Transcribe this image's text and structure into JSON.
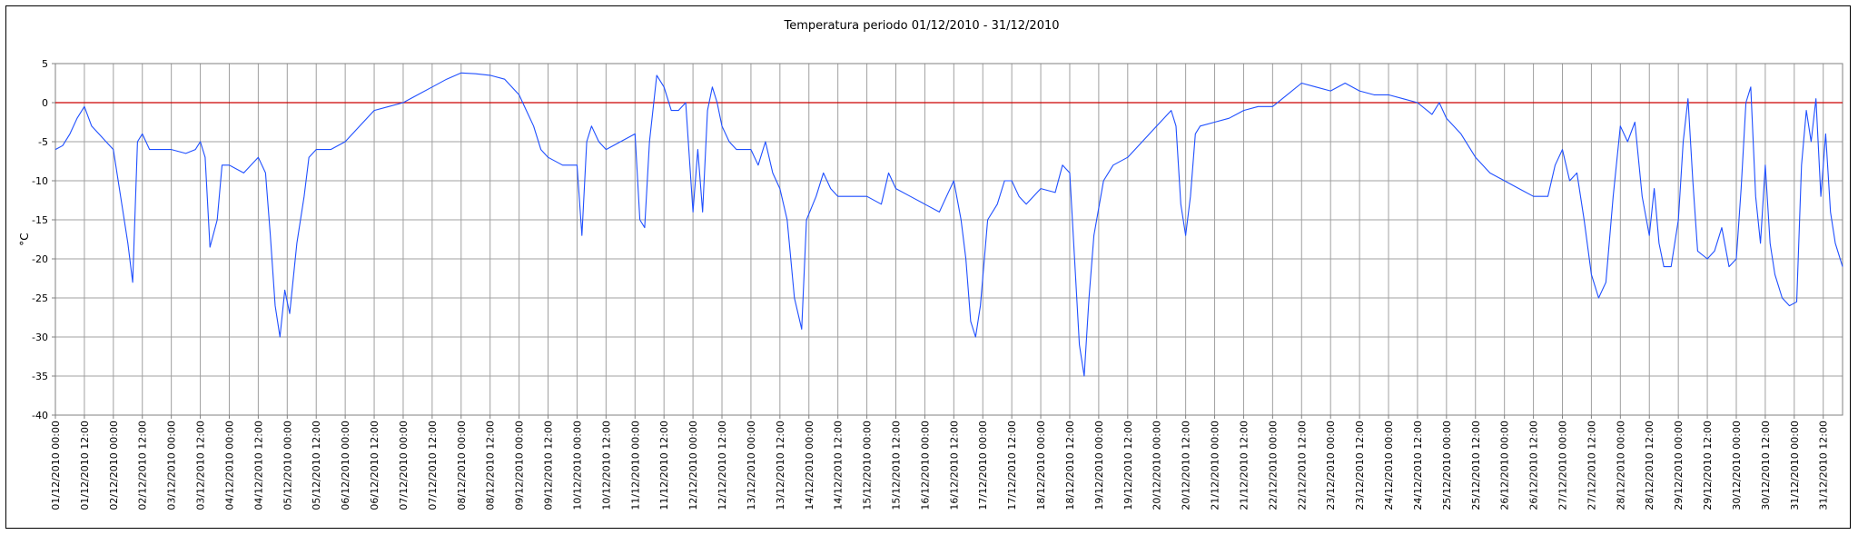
{
  "chart_data": {
    "type": "line",
    "title": "Temperatura periodo 01/12/2010 - 31/12/2010",
    "ylabel": "°C",
    "xlabel": "",
    "ylim": [
      -40,
      5
    ],
    "yticks": [
      5,
      0,
      -5,
      -10,
      -15,
      -20,
      -25,
      -30,
      -35,
      -40
    ],
    "xlim": [
      "01/12/2010 00:00",
      "31/12/2010 20:00"
    ],
    "xticks": [
      "01/12/2010 00:00",
      "01/12/2010 12:00",
      "02/12/2010 00:00",
      "02/12/2010 12:00",
      "03/12/2010 00:00",
      "03/12/2010 12:00",
      "04/12/2010 00:00",
      "04/12/2010 12:00",
      "05/12/2010 00:00",
      "05/12/2010 12:00",
      "06/12/2010 00:00",
      "06/12/2010 12:00",
      "07/12/2010 00:00",
      "07/12/2010 12:00",
      "08/12/2010 00:00",
      "08/12/2010 12:00",
      "09/12/2010 00:00",
      "09/12/2010 12:00",
      "10/12/2010 00:00",
      "10/12/2010 12:00",
      "11/12/2010 00:00",
      "11/12/2010 12:00",
      "12/12/2010 00:00",
      "12/12/2010 12:00",
      "13/12/2010 00:00",
      "13/12/2010 12:00",
      "14/12/2010 00:00",
      "14/12/2010 12:00",
      "15/12/2010 00:00",
      "15/12/2010 12:00",
      "16/12/2010 00:00",
      "16/12/2010 12:00",
      "17/12/2010 00:00",
      "17/12/2010 12:00",
      "18/12/2010 00:00",
      "18/12/2010 12:00",
      "19/12/2010 00:00",
      "19/12/2010 12:00",
      "20/12/2010 00:00",
      "20/12/2010 12:00",
      "21/12/2010 00:00",
      "21/12/2010 12:00",
      "22/12/2010 00:00",
      "22/12/2010 12:00",
      "23/12/2010 00:00",
      "23/12/2010 12:00",
      "24/12/2010 00:00",
      "24/12/2010 12:00",
      "25/12/2010 00:00",
      "25/12/2010 12:00",
      "26/12/2010 00:00",
      "26/12/2010 12:00",
      "27/12/2010 00:00",
      "27/12/2010 12:00",
      "28/12/2010 00:00",
      "28/12/2010 12:00",
      "29/12/2010 00:00",
      "29/12/2010 12:00",
      "30/12/2010 00:00",
      "30/12/2010 12:00",
      "31/12/2010 00:00",
      "31/12/2010 12:00"
    ],
    "grid": true,
    "reference_line": {
      "y": 0,
      "color": "#cc0000"
    },
    "line_color": "#1f4fff",
    "series": [
      {
        "values": [
          [
            "01/12/2010 00:00",
            -6
          ],
          [
            "01/12/2010 03:00",
            -5.5
          ],
          [
            "01/12/2010 06:00",
            -4
          ],
          [
            "01/12/2010 09:00",
            -2
          ],
          [
            "01/12/2010 12:00",
            -0.5
          ],
          [
            "01/12/2010 15:00",
            -3
          ],
          [
            "01/12/2010 18:00",
            -4
          ],
          [
            "01/12/2010 21:00",
            -5
          ],
          [
            "02/12/2010 00:00",
            -6
          ],
          [
            "02/12/2010 03:00",
            -12
          ],
          [
            "02/12/2010 06:00",
            -18
          ],
          [
            "02/12/2010 08:00",
            -23
          ],
          [
            "02/12/2010 10:00",
            -5
          ],
          [
            "02/12/2010 12:00",
            -4
          ],
          [
            "02/12/2010 15:00",
            -6
          ],
          [
            "02/12/2010 18:00",
            -6
          ],
          [
            "02/12/2010 21:00",
            -6
          ],
          [
            "03/12/2010 00:00",
            -6
          ],
          [
            "03/12/2010 06:00",
            -6.5
          ],
          [
            "03/12/2010 10:00",
            -6
          ],
          [
            "03/12/2010 12:00",
            -5
          ],
          [
            "03/12/2010 14:00",
            -7
          ],
          [
            "03/12/2010 16:00",
            -18.5
          ],
          [
            "03/12/2010 19:00",
            -15
          ],
          [
            "03/12/2010 21:00",
            -8
          ],
          [
            "04/12/2010 00:00",
            -8
          ],
          [
            "04/12/2010 06:00",
            -9
          ],
          [
            "04/12/2010 09:00",
            -8
          ],
          [
            "04/12/2010 12:00",
            -7
          ],
          [
            "04/12/2010 15:00",
            -9
          ],
          [
            "04/12/2010 17:00",
            -17
          ],
          [
            "04/12/2010 19:00",
            -26
          ],
          [
            "04/12/2010 21:00",
            -30
          ],
          [
            "04/12/2010 23:00",
            -24
          ],
          [
            "05/12/2010 01:00",
            -27
          ],
          [
            "05/12/2010 04:00",
            -18
          ],
          [
            "05/12/2010 07:00",
            -12
          ],
          [
            "05/12/2010 09:00",
            -7
          ],
          [
            "05/12/2010 12:00",
            -6
          ],
          [
            "05/12/2010 18:00",
            -6
          ],
          [
            "06/12/2010 00:00",
            -5
          ],
          [
            "06/12/2010 06:00",
            -3
          ],
          [
            "06/12/2010 12:00",
            -1
          ],
          [
            "06/12/2010 18:00",
            -0.5
          ],
          [
            "07/12/2010 00:00",
            0
          ],
          [
            "07/12/2010 06:00",
            1
          ],
          [
            "07/12/2010 12:00",
            2
          ],
          [
            "07/12/2010 18:00",
            3
          ],
          [
            "08/12/2010 00:00",
            3.8
          ],
          [
            "08/12/2010 06:00",
            3.7
          ],
          [
            "08/12/2010 12:00",
            3.5
          ],
          [
            "08/12/2010 18:00",
            3
          ],
          [
            "09/12/2010 00:00",
            1
          ],
          [
            "09/12/2010 03:00",
            -1
          ],
          [
            "09/12/2010 06:00",
            -3
          ],
          [
            "09/12/2010 09:00",
            -6
          ],
          [
            "09/12/2010 12:00",
            -7
          ],
          [
            "09/12/2010 18:00",
            -8
          ],
          [
            "10/12/2010 00:00",
            -8
          ],
          [
            "10/12/2010 02:00",
            -17
          ],
          [
            "10/12/2010 04:00",
            -5
          ],
          [
            "10/12/2010 06:00",
            -3
          ],
          [
            "10/12/2010 09:00",
            -5
          ],
          [
            "10/12/2010 12:00",
            -6
          ],
          [
            "10/12/2010 18:00",
            -5
          ],
          [
            "11/12/2010 00:00",
            -4
          ],
          [
            "11/12/2010 02:00",
            -15
          ],
          [
            "11/12/2010 04:00",
            -16
          ],
          [
            "11/12/2010 06:00",
            -5
          ],
          [
            "11/12/2010 09:00",
            3.5
          ],
          [
            "11/12/2010 12:00",
            2
          ],
          [
            "11/12/2010 15:00",
            -1
          ],
          [
            "11/12/2010 18:00",
            -1
          ],
          [
            "11/12/2010 21:00",
            0
          ],
          [
            "12/12/2010 00:00",
            -14
          ],
          [
            "12/12/2010 02:00",
            -6
          ],
          [
            "12/12/2010 04:00",
            -14
          ],
          [
            "12/12/2010 06:00",
            -1
          ],
          [
            "12/12/2010 08:00",
            2
          ],
          [
            "12/12/2010 10:00",
            0
          ],
          [
            "12/12/2010 12:00",
            -3
          ],
          [
            "12/12/2010 15:00",
            -5
          ],
          [
            "12/12/2010 18:00",
            -6
          ],
          [
            "13/12/2010 00:00",
            -6
          ],
          [
            "13/12/2010 03:00",
            -8
          ],
          [
            "13/12/2010 06:00",
            -5
          ],
          [
            "13/12/2010 09:00",
            -9
          ],
          [
            "13/12/2010 12:00",
            -11
          ],
          [
            "13/12/2010 15:00",
            -15
          ],
          [
            "13/12/2010 18:00",
            -25
          ],
          [
            "13/12/2010 21:00",
            -29
          ],
          [
            "13/12/2010 23:00",
            -15
          ],
          [
            "14/12/2010 03:00",
            -12
          ],
          [
            "14/12/2010 06:00",
            -9
          ],
          [
            "14/12/2010 09:00",
            -11
          ],
          [
            "14/12/2010 12:00",
            -12
          ],
          [
            "14/12/2010 18:00",
            -12
          ],
          [
            "15/12/2010 00:00",
            -12
          ],
          [
            "15/12/2010 06:00",
            -13
          ],
          [
            "15/12/2010 09:00",
            -9
          ],
          [
            "15/12/2010 12:00",
            -11
          ],
          [
            "15/12/2010 18:00",
            -12
          ],
          [
            "16/12/2010 00:00",
            -13
          ],
          [
            "16/12/2010 06:00",
            -14
          ],
          [
            "16/12/2010 09:00",
            -12
          ],
          [
            "16/12/2010 12:00",
            -10
          ],
          [
            "16/12/2010 15:00",
            -15
          ],
          [
            "16/12/2010 17:00",
            -20
          ],
          [
            "16/12/2010 19:00",
            -28
          ],
          [
            "16/12/2010 21:00",
            -30
          ],
          [
            "16/12/2010 23:00",
            -26
          ],
          [
            "17/12/2010 02:00",
            -15
          ],
          [
            "17/12/2010 06:00",
            -13
          ],
          [
            "17/12/2010 09:00",
            -10
          ],
          [
            "17/12/2010 12:00",
            -10
          ],
          [
            "17/12/2010 15:00",
            -12
          ],
          [
            "17/12/2010 18:00",
            -13
          ],
          [
            "18/12/2010 00:00",
            -11
          ],
          [
            "18/12/2010 06:00",
            -11.5
          ],
          [
            "18/12/2010 09:00",
            -8
          ],
          [
            "18/12/2010 12:00",
            -9
          ],
          [
            "18/12/2010 14:00",
            -20
          ],
          [
            "18/12/2010 16:00",
            -31
          ],
          [
            "18/12/2010 18:00",
            -35
          ],
          [
            "18/12/2010 20:00",
            -25
          ],
          [
            "18/12/2010 22:00",
            -17
          ],
          [
            "19/12/2010 02:00",
            -10
          ],
          [
            "19/12/2010 06:00",
            -8
          ],
          [
            "19/12/2010 12:00",
            -7
          ],
          [
            "19/12/2010 18:00",
            -5
          ],
          [
            "20/12/2010 00:00",
            -3
          ],
          [
            "20/12/2010 03:00",
            -2
          ],
          [
            "20/12/2010 06:00",
            -1
          ],
          [
            "20/12/2010 08:00",
            -3
          ],
          [
            "20/12/2010 10:00",
            -13
          ],
          [
            "20/12/2010 12:00",
            -17
          ],
          [
            "20/12/2010 14:00",
            -12
          ],
          [
            "20/12/2010 16:00",
            -4
          ],
          [
            "20/12/2010 18:00",
            -3
          ],
          [
            "21/12/2010 00:00",
            -2.5
          ],
          [
            "21/12/2010 06:00",
            -2
          ],
          [
            "21/12/2010 12:00",
            -1
          ],
          [
            "21/12/2010 18:00",
            -0.5
          ],
          [
            "22/12/2010 00:00",
            -0.5
          ],
          [
            "22/12/2010 06:00",
            1
          ],
          [
            "22/12/2010 12:00",
            2.5
          ],
          [
            "22/12/2010 18:00",
            2
          ],
          [
            "23/12/2010 00:00",
            1.5
          ],
          [
            "23/12/2010 06:00",
            2.5
          ],
          [
            "23/12/2010 12:00",
            1.5
          ],
          [
            "23/12/2010 18:00",
            1
          ],
          [
            "24/12/2010 00:00",
            1
          ],
          [
            "24/12/2010 06:00",
            0.5
          ],
          [
            "24/12/2010 12:00",
            0
          ],
          [
            "24/12/2010 18:00",
            -1.5
          ],
          [
            "24/12/2010 21:00",
            0
          ],
          [
            "25/12/2010 00:00",
            -2
          ],
          [
            "25/12/2010 06:00",
            -4
          ],
          [
            "25/12/2010 12:00",
            -7
          ],
          [
            "25/12/2010 18:00",
            -9
          ],
          [
            "26/12/2010 00:00",
            -10
          ],
          [
            "26/12/2010 06:00",
            -11
          ],
          [
            "26/12/2010 12:00",
            -12
          ],
          [
            "26/12/2010 18:00",
            -12
          ],
          [
            "26/12/2010 21:00",
            -8
          ],
          [
            "27/12/2010 00:00",
            -6
          ],
          [
            "27/12/2010 03:00",
            -10
          ],
          [
            "27/12/2010 06:00",
            -9
          ],
          [
            "27/12/2010 09:00",
            -15
          ],
          [
            "27/12/2010 12:00",
            -22
          ],
          [
            "27/12/2010 15:00",
            -25
          ],
          [
            "27/12/2010 18:00",
            -23
          ],
          [
            "27/12/2010 21:00",
            -12
          ],
          [
            "28/12/2010 00:00",
            -3
          ],
          [
            "28/12/2010 03:00",
            -5
          ],
          [
            "28/12/2010 06:00",
            -2.5
          ],
          [
            "28/12/2010 09:00",
            -12
          ],
          [
            "28/12/2010 12:00",
            -17
          ],
          [
            "28/12/2010 14:00",
            -11
          ],
          [
            "28/12/2010 16:00",
            -18
          ],
          [
            "28/12/2010 18:00",
            -21
          ],
          [
            "28/12/2010 21:00",
            -21
          ],
          [
            "29/12/2010 00:00",
            -15
          ],
          [
            "29/12/2010 02:00",
            -5
          ],
          [
            "29/12/2010 04:00",
            0.5
          ],
          [
            "29/12/2010 06:00",
            -10
          ],
          [
            "29/12/2010 08:00",
            -19
          ],
          [
            "29/12/2010 12:00",
            -20
          ],
          [
            "29/12/2010 15:00",
            -19
          ],
          [
            "29/12/2010 18:00",
            -16
          ],
          [
            "29/12/2010 21:00",
            -21
          ],
          [
            "30/12/2010 00:00",
            -20
          ],
          [
            "30/12/2010 02:00",
            -11
          ],
          [
            "30/12/2010 04:00",
            0
          ],
          [
            "30/12/2010 06:00",
            2
          ],
          [
            "30/12/2010 08:00",
            -12
          ],
          [
            "30/12/2010 10:00",
            -18
          ],
          [
            "30/12/2010 12:00",
            -8
          ],
          [
            "30/12/2010 14:00",
            -18
          ],
          [
            "30/12/2010 16:00",
            -22
          ],
          [
            "30/12/2010 19:00",
            -25
          ],
          [
            "30/12/2010 22:00",
            -26
          ],
          [
            "31/12/2010 01:00",
            -25.5
          ],
          [
            "31/12/2010 03:00",
            -8
          ],
          [
            "31/12/2010 05:00",
            -1
          ],
          [
            "31/12/2010 07:00",
            -5
          ],
          [
            "31/12/2010 09:00",
            0.5
          ],
          [
            "31/12/2010 11:00",
            -12
          ],
          [
            "31/12/2010 13:00",
            -4
          ],
          [
            "31/12/2010 15:00",
            -14
          ],
          [
            "31/12/2010 17:00",
            -18
          ],
          [
            "31/12/2010 20:00",
            -21
          ]
        ]
      }
    ]
  }
}
